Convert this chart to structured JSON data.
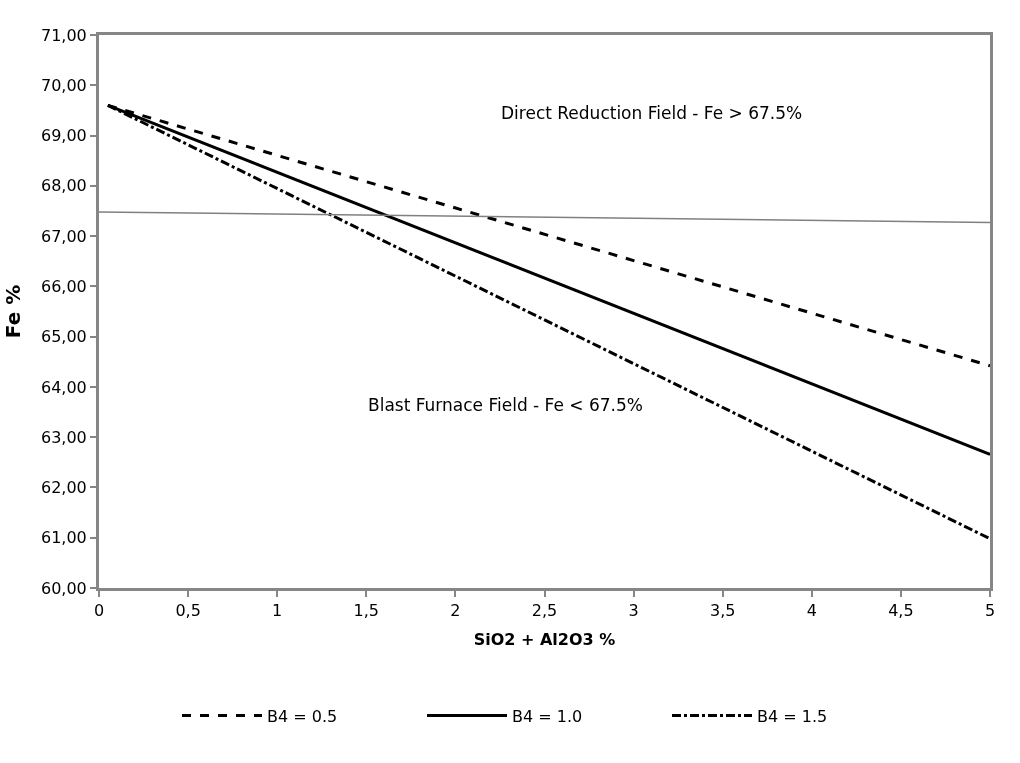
{
  "chart_data": {
    "type": "line",
    "xlabel": "SiO2 + Al2O3 %",
    "ylabel": "Fe %",
    "xlim": [
      0,
      5
    ],
    "ylim": [
      60,
      71
    ],
    "xticks": [
      0,
      {
        "value": 0.5,
        "label": "0,5"
      },
      1,
      {
        "value": 1.5,
        "label": "1,5"
      },
      2,
      {
        "value": 2.5,
        "label": "2,5"
      },
      3,
      {
        "value": 3.5,
        "label": "3,5"
      },
      4,
      {
        "value": 4.5,
        "label": "4,5"
      },
      5
    ],
    "yticks": [
      {
        "value": 60,
        "label": "60,00"
      },
      {
        "value": 61,
        "label": "61,00"
      },
      {
        "value": 62,
        "label": "62,00"
      },
      {
        "value": 63,
        "label": "63,00"
      },
      {
        "value": 64,
        "label": "64,00"
      },
      {
        "value": 65,
        "label": "65,00"
      },
      {
        "value": 66,
        "label": "66,00"
      },
      {
        "value": 67,
        "label": "67,00"
      },
      {
        "value": 68,
        "label": "68,00"
      },
      {
        "value": 69,
        "label": "69,00"
      },
      {
        "value": 70,
        "label": "70,00"
      },
      {
        "value": 71,
        "label": "71,00"
      }
    ],
    "series": [
      {
        "name": "B4 = 0.5",
        "color": "#000000",
        "x": [
          0.05,
          5
        ],
        "values": [
          69.6,
          64.42
        ],
        "line_style": "dashed"
      },
      {
        "name": "B4 = 1.0",
        "color": "#000000",
        "x": [
          0.05,
          5
        ],
        "values": [
          69.6,
          62.66
        ],
        "line_style": "solid"
      },
      {
        "name": "B4 = 1.5",
        "color": "#000000",
        "x": [
          0.05,
          5
        ],
        "values": [
          69.6,
          60.98
        ],
        "line_style": "dashdot"
      },
      {
        "color": "#808080",
        "x": [
          0,
          5
        ],
        "values": [
          67.48,
          67.27
        ],
        "line_style": "solid"
      }
    ],
    "annotations": [
      "Direct Reduction Field - Fe > 67.5%",
      "Blast Furnace Field - Fe < 67.5%"
    ],
    "legend": "bottom",
    "grid": false,
    "marker": "none"
  }
}
